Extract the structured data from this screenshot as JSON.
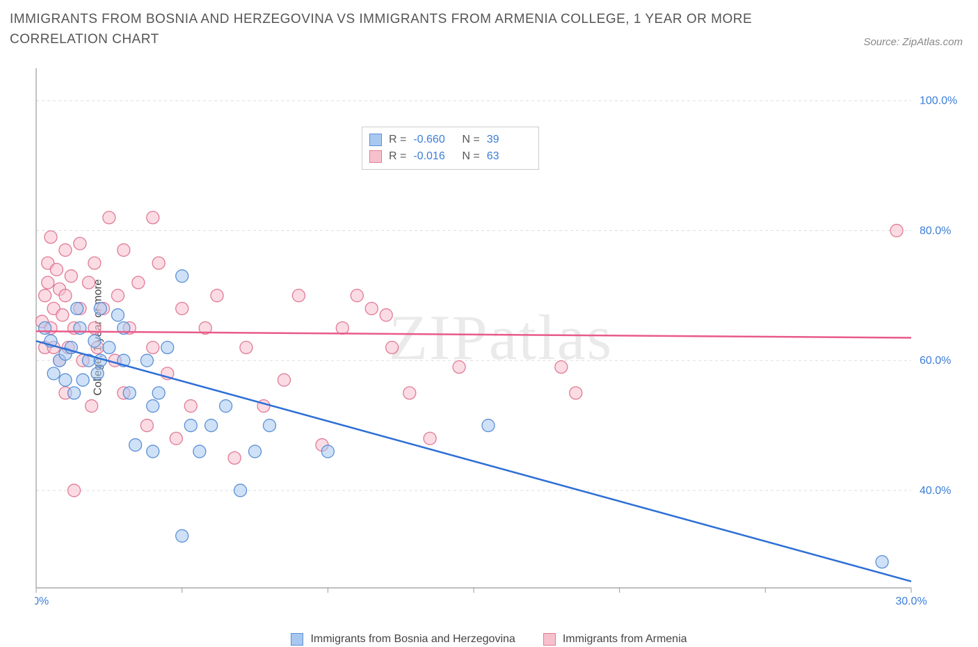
{
  "title": "IMMIGRANTS FROM BOSNIA AND HERZEGOVINA VS IMMIGRANTS FROM ARMENIA COLLEGE, 1 YEAR OR MORE CORRELATION CHART",
  "source": "Source: ZipAtlas.com",
  "ylabel": "College, 1 year or more",
  "watermark": "ZIPatlas",
  "chart": {
    "type": "scatter",
    "xlim": [
      0,
      30
    ],
    "ylim": [
      25,
      105
    ],
    "xticks": [
      0,
      5,
      10,
      15,
      20,
      25,
      30
    ],
    "yticks": [
      40,
      60,
      80,
      100
    ],
    "ytick_labels": [
      "40.0%",
      "60.0%",
      "80.0%",
      "100.0%"
    ],
    "xtick_labels_shown": {
      "0": "0.0%",
      "30": "30.0%"
    },
    "grid_color": "#dddddd",
    "axis_color": "#999999",
    "background_color": "#ffffff",
    "tick_label_color": "#3b7dd8",
    "marker_radius": 9,
    "series": [
      {
        "name": "Immigrants from Bosnia and Herzegovina",
        "color_fill": "#a8c8f0",
        "color_stroke": "#5a8fd6",
        "R": "-0.660",
        "N": "39",
        "regression": {
          "x1": 0,
          "y1": 63,
          "x2": 30,
          "y2": 26,
          "color": "#2e6fd6"
        },
        "points": [
          [
            0.3,
            65
          ],
          [
            0.5,
            63
          ],
          [
            0.6,
            58
          ],
          [
            0.8,
            60
          ],
          [
            1.0,
            61
          ],
          [
            1.0,
            57
          ],
          [
            1.2,
            62
          ],
          [
            1.3,
            55
          ],
          [
            1.4,
            68
          ],
          [
            1.5,
            65
          ],
          [
            1.6,
            57
          ],
          [
            1.8,
            60
          ],
          [
            2.0,
            63
          ],
          [
            2.1,
            58
          ],
          [
            2.2,
            68
          ],
          [
            2.2,
            60
          ],
          [
            2.5,
            62
          ],
          [
            2.8,
            67
          ],
          [
            3.0,
            65
          ],
          [
            3.0,
            60
          ],
          [
            3.2,
            55
          ],
          [
            3.4,
            47
          ],
          [
            3.8,
            60
          ],
          [
            4.0,
            53
          ],
          [
            4.0,
            46
          ],
          [
            4.2,
            55
          ],
          [
            4.5,
            62
          ],
          [
            5.0,
            73
          ],
          [
            5.0,
            33
          ],
          [
            5.3,
            50
          ],
          [
            5.6,
            46
          ],
          [
            6.0,
            50
          ],
          [
            6.5,
            53
          ],
          [
            7.0,
            40
          ],
          [
            7.5,
            46
          ],
          [
            8.0,
            50
          ],
          [
            10.0,
            46
          ],
          [
            15.5,
            50
          ],
          [
            29.0,
            29
          ]
        ]
      },
      {
        "name": "Immigrants from Armenia",
        "color_fill": "#f7c0cd",
        "color_stroke": "#e17a94",
        "R": "-0.016",
        "N": "63",
        "regression": {
          "x1": 0,
          "y1": 64.5,
          "x2": 30,
          "y2": 63.5,
          "color": "#e85a8a"
        },
        "points": [
          [
            0.2,
            66
          ],
          [
            0.3,
            70
          ],
          [
            0.3,
            62
          ],
          [
            0.4,
            72
          ],
          [
            0.4,
            75
          ],
          [
            0.5,
            65
          ],
          [
            0.5,
            79
          ],
          [
            0.6,
            68
          ],
          [
            0.6,
            62
          ],
          [
            0.7,
            74
          ],
          [
            0.8,
            71
          ],
          [
            0.8,
            60
          ],
          [
            0.9,
            67
          ],
          [
            1.0,
            77
          ],
          [
            1.0,
            70
          ],
          [
            1.0,
            55
          ],
          [
            1.1,
            62
          ],
          [
            1.2,
            73
          ],
          [
            1.3,
            65
          ],
          [
            1.3,
            40
          ],
          [
            1.5,
            78
          ],
          [
            1.5,
            68
          ],
          [
            1.6,
            60
          ],
          [
            1.8,
            72
          ],
          [
            1.9,
            53
          ],
          [
            2.0,
            65
          ],
          [
            2.0,
            75
          ],
          [
            2.1,
            62
          ],
          [
            2.3,
            68
          ],
          [
            2.5,
            82
          ],
          [
            2.7,
            60
          ],
          [
            2.8,
            70
          ],
          [
            3.0,
            77
          ],
          [
            3.0,
            55
          ],
          [
            3.2,
            65
          ],
          [
            3.5,
            72
          ],
          [
            3.8,
            50
          ],
          [
            4.0,
            62
          ],
          [
            4.0,
            82
          ],
          [
            4.2,
            75
          ],
          [
            4.5,
            58
          ],
          [
            4.8,
            48
          ],
          [
            5.0,
            68
          ],
          [
            5.3,
            53
          ],
          [
            5.8,
            65
          ],
          [
            6.2,
            70
          ],
          [
            6.8,
            45
          ],
          [
            7.2,
            62
          ],
          [
            7.8,
            53
          ],
          [
            8.5,
            57
          ],
          [
            9.0,
            70
          ],
          [
            9.8,
            47
          ],
          [
            10.5,
            65
          ],
          [
            11.0,
            70
          ],
          [
            11.5,
            68
          ],
          [
            12.0,
            67
          ],
          [
            12.2,
            62
          ],
          [
            12.8,
            55
          ],
          [
            13.5,
            48
          ],
          [
            14.5,
            59
          ],
          [
            18.0,
            59
          ],
          [
            18.5,
            55
          ],
          [
            29.5,
            80
          ]
        ]
      }
    ]
  },
  "legend_top": {
    "R_label": "R =",
    "N_label": "N ="
  }
}
